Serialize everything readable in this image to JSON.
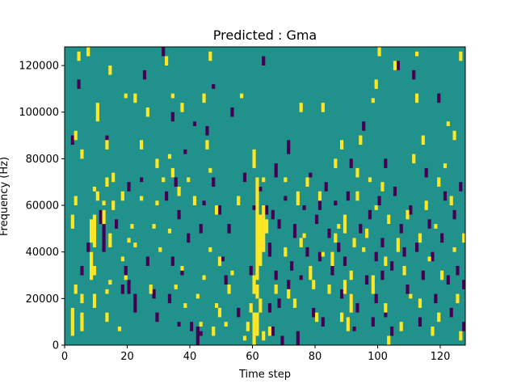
{
  "chart_data": {
    "type": "heatmap",
    "title": "Predicted : Gma",
    "xlabel": "Time step",
    "ylabel": "Frequency (Hz)",
    "xlim": [
      0,
      128
    ],
    "ylim": [
      0,
      128000
    ],
    "xticks": [
      0,
      20,
      40,
      60,
      80,
      100,
      120
    ],
    "yticks": [
      0,
      20000,
      40000,
      60000,
      80000,
      100000,
      120000
    ],
    "grid": false,
    "colors": {
      "background": "#21918c",
      "low": "#440154",
      "high": "#fde725"
    },
    "high_cells": [
      [
        2,
        4000,
        16000
      ],
      [
        2,
        50000,
        56000
      ],
      [
        3,
        60000,
        64000
      ],
      [
        3,
        22000,
        26000
      ],
      [
        3,
        88000,
        92000
      ],
      [
        4,
        122000,
        126000
      ],
      [
        5,
        6000,
        14000
      ],
      [
        5,
        18000,
        22000
      ],
      [
        5,
        80000,
        84000
      ],
      [
        7,
        124000,
        128000
      ],
      [
        8,
        28000,
        40000
      ],
      [
        8,
        44000,
        54000
      ],
      [
        9,
        42000,
        56000
      ],
      [
        9,
        30000,
        34000
      ],
      [
        9,
        66000,
        68000
      ],
      [
        9,
        16000,
        22000
      ],
      [
        10,
        96000,
        104000
      ],
      [
        10,
        62000,
        66000
      ],
      [
        12,
        52000,
        58000
      ],
      [
        12,
        60000,
        62000
      ],
      [
        13,
        84000,
        88000
      ],
      [
        13,
        22000,
        24000
      ],
      [
        13,
        10000,
        14000
      ],
      [
        13,
        68000,
        72000
      ],
      [
        14,
        42000,
        48000
      ],
      [
        14,
        26000,
        28000
      ],
      [
        14,
        116000,
        120000
      ],
      [
        15,
        58000,
        62000
      ],
      [
        15,
        70000,
        74000
      ],
      [
        17,
        6000,
        8000
      ],
      [
        18,
        36000,
        38000
      ],
      [
        18,
        62000,
        66000
      ],
      [
        19,
        28000,
        30000
      ],
      [
        19,
        106000,
        108000
      ],
      [
        20,
        44000,
        46000
      ],
      [
        21,
        50000,
        52000
      ],
      [
        22,
        104000,
        108000
      ],
      [
        22,
        42000,
        44000
      ],
      [
        24,
        84000,
        88000
      ],
      [
        24,
        62000,
        64000
      ],
      [
        26,
        98000,
        102000
      ],
      [
        27,
        22000,
        26000
      ],
      [
        28,
        50000,
        52000
      ],
      [
        29,
        60000,
        62000
      ],
      [
        29,
        76000,
        80000
      ],
      [
        30,
        40000,
        42000
      ],
      [
        31,
        70000,
        72000
      ],
      [
        32,
        120000,
        124000
      ],
      [
        33,
        80000,
        82000
      ],
      [
        33,
        48000,
        50000
      ],
      [
        34,
        72000,
        76000
      ],
      [
        34,
        106000,
        108000
      ],
      [
        35,
        24000,
        26000
      ],
      [
        36,
        64000,
        68000
      ],
      [
        37,
        100000,
        104000
      ],
      [
        37,
        32000,
        34000
      ],
      [
        38,
        16000,
        18000
      ],
      [
        39,
        70000,
        72000
      ],
      [
        41,
        60000,
        64000
      ],
      [
        42,
        20000,
        22000
      ],
      [
        43,
        8000,
        10000
      ],
      [
        44,
        104000,
        108000
      ],
      [
        44,
        28000,
        30000
      ],
      [
        45,
        84000,
        88000
      ],
      [
        46,
        74000,
        76000
      ],
      [
        46,
        40000,
        42000
      ],
      [
        46,
        122000,
        126000
      ],
      [
        47,
        4000,
        8000
      ],
      [
        48,
        56000,
        60000
      ],
      [
        48,
        16000,
        18000
      ],
      [
        49,
        12000,
        16000
      ],
      [
        49,
        34000,
        38000
      ],
      [
        51,
        8000,
        10000
      ],
      [
        52,
        22000,
        26000
      ],
      [
        53,
        30000,
        32000
      ],
      [
        55,
        60000,
        64000
      ],
      [
        56,
        106000,
        108000
      ],
      [
        57,
        2000,
        4000
      ],
      [
        58,
        6000,
        10000
      ],
      [
        59,
        14000,
        18000
      ],
      [
        60,
        76000,
        84000
      ],
      [
        60,
        22000,
        30000
      ],
      [
        60,
        0,
        14000
      ],
      [
        61,
        28000,
        72000
      ],
      [
        61,
        20000,
        26000
      ],
      [
        61,
        4000,
        14000
      ],
      [
        62,
        34000,
        56000
      ],
      [
        62,
        14000,
        20000
      ],
      [
        63,
        40000,
        60000
      ],
      [
        63,
        2000,
        6000
      ],
      [
        63,
        70000,
        72000
      ],
      [
        64,
        48000,
        54000
      ],
      [
        65,
        4000,
        8000
      ],
      [
        67,
        22000,
        26000
      ],
      [
        70,
        38000,
        42000
      ],
      [
        70,
        70000,
        72000
      ],
      [
        71,
        20000,
        24000
      ],
      [
        73,
        16000,
        20000
      ],
      [
        74,
        60000,
        66000
      ],
      [
        75,
        100000,
        104000
      ],
      [
        75,
        42000,
        46000
      ],
      [
        76,
        46000,
        48000
      ],
      [
        77,
        68000,
        72000
      ],
      [
        78,
        28000,
        34000
      ],
      [
        79,
        24000,
        28000
      ],
      [
        80,
        10000,
        14000
      ],
      [
        81,
        62000,
        66000
      ],
      [
        82,
        38000,
        40000
      ],
      [
        82,
        100000,
        104000
      ],
      [
        84,
        22000,
        26000
      ],
      [
        85,
        34000,
        40000
      ],
      [
        86,
        76000,
        80000
      ],
      [
        86,
        44000,
        48000
      ],
      [
        87,
        50000,
        52000
      ],
      [
        88,
        84000,
        88000
      ],
      [
        88,
        10000,
        14000
      ],
      [
        89,
        22000,
        28000
      ],
      [
        89,
        48000,
        56000
      ],
      [
        90,
        6000,
        12000
      ],
      [
        91,
        14000,
        22000
      ],
      [
        91,
        28000,
        32000
      ],
      [
        92,
        42000,
        46000
      ],
      [
        93,
        62000,
        66000
      ],
      [
        93,
        72000,
        76000
      ],
      [
        94,
        86000,
        90000
      ],
      [
        95,
        40000,
        42000
      ],
      [
        96,
        46000,
        50000
      ],
      [
        97,
        70000,
        72000
      ],
      [
        98,
        22000,
        30000
      ],
      [
        98,
        104000,
        106000
      ],
      [
        99,
        110000,
        114000
      ],
      [
        99,
        58000,
        60000
      ],
      [
        100,
        124000,
        128000
      ],
      [
        101,
        66000,
        70000
      ],
      [
        102,
        34000,
        38000
      ],
      [
        102,
        14000,
        18000
      ],
      [
        103,
        0,
        4000
      ],
      [
        103,
        52000,
        56000
      ],
      [
        105,
        118000,
        122000
      ],
      [
        106,
        40000,
        46000
      ],
      [
        107,
        6000,
        10000
      ],
      [
        108,
        30000,
        34000
      ],
      [
        109,
        54000,
        58000
      ],
      [
        110,
        20000,
        22000
      ],
      [
        111,
        78000,
        82000
      ],
      [
        112,
        104000,
        108000
      ],
      [
        112,
        124000,
        126000
      ],
      [
        113,
        44000,
        48000
      ],
      [
        113,
        16000,
        20000
      ],
      [
        114,
        86000,
        90000
      ],
      [
        115,
        58000,
        62000
      ],
      [
        116,
        36000,
        38000
      ],
      [
        117,
        4000,
        8000
      ],
      [
        118,
        50000,
        52000
      ],
      [
        119,
        68000,
        72000
      ],
      [
        119,
        10000,
        14000
      ],
      [
        120,
        28000,
        32000
      ],
      [
        121,
        76000,
        78000
      ],
      [
        122,
        94000,
        96000
      ],
      [
        123,
        60000,
        64000
      ],
      [
        124,
        40000,
        42000
      ],
      [
        124,
        88000,
        92000
      ],
      [
        125,
        18000,
        22000
      ],
      [
        126,
        2000,
        6000
      ],
      [
        126,
        122000,
        126000
      ],
      [
        127,
        44000,
        48000
      ]
    ],
    "low_cells": [
      [
        2,
        86000,
        90000
      ],
      [
        4,
        110000,
        114000
      ],
      [
        5,
        30000,
        34000
      ],
      [
        7,
        40000,
        44000
      ],
      [
        11,
        52000,
        58000
      ],
      [
        12,
        40000,
        52000
      ],
      [
        13,
        88000,
        90000
      ],
      [
        16,
        50000,
        54000
      ],
      [
        18,
        22000,
        26000
      ],
      [
        19,
        30000,
        34000
      ],
      [
        20,
        22000,
        28000
      ],
      [
        20,
        66000,
        70000
      ],
      [
        22,
        14000,
        22000
      ],
      [
        24,
        70000,
        72000
      ],
      [
        25,
        114000,
        118000
      ],
      [
        26,
        34000,
        38000
      ],
      [
        28,
        20000,
        24000
      ],
      [
        29,
        10000,
        14000
      ],
      [
        31,
        124000,
        128000
      ],
      [
        32,
        62000,
        66000
      ],
      [
        33,
        18000,
        22000
      ],
      [
        34,
        96000,
        100000
      ],
      [
        34,
        34000,
        38000
      ],
      [
        35,
        68000,
        72000
      ],
      [
        36,
        54000,
        58000
      ],
      [
        36,
        8000,
        10000
      ],
      [
        37,
        30000,
        34000
      ],
      [
        38,
        82000,
        84000
      ],
      [
        39,
        44000,
        48000
      ],
      [
        40,
        6000,
        10000
      ],
      [
        41,
        94000,
        96000
      ],
      [
        42,
        0,
        8000
      ],
      [
        43,
        4000,
        6000
      ],
      [
        43,
        48000,
        52000
      ],
      [
        44,
        60000,
        62000
      ],
      [
        45,
        90000,
        94000
      ],
      [
        47,
        68000,
        72000
      ],
      [
        47,
        110000,
        112000
      ],
      [
        49,
        56000,
        60000
      ],
      [
        50,
        36000,
        38000
      ],
      [
        51,
        26000,
        30000
      ],
      [
        52,
        48000,
        52000
      ],
      [
        53,
        98000,
        102000
      ],
      [
        55,
        12000,
        16000
      ],
      [
        57,
        70000,
        74000
      ],
      [
        59,
        30000,
        34000
      ],
      [
        60,
        58000,
        60000
      ],
      [
        61,
        10000,
        12000
      ],
      [
        62,
        66000,
        68000
      ],
      [
        63,
        120000,
        124000
      ],
      [
        64,
        56000,
        60000
      ],
      [
        65,
        38000,
        44000
      ],
      [
        65,
        14000,
        18000
      ],
      [
        66,
        4000,
        8000
      ],
      [
        66,
        54000,
        58000
      ],
      [
        67,
        72000,
        78000
      ],
      [
        67,
        28000,
        32000
      ],
      [
        68,
        16000,
        20000
      ],
      [
        68,
        50000,
        54000
      ],
      [
        69,
        0,
        4000
      ],
      [
        70,
        62000,
        64000
      ],
      [
        71,
        82000,
        88000
      ],
      [
        71,
        24000,
        28000
      ],
      [
        72,
        32000,
        36000
      ],
      [
        73,
        46000,
        52000
      ],
      [
        74,
        0,
        6000
      ],
      [
        75,
        28000,
        30000
      ],
      [
        76,
        58000,
        60000
      ],
      [
        77,
        38000,
        42000
      ],
      [
        78,
        72000,
        74000
      ],
      [
        79,
        12000,
        16000
      ],
      [
        80,
        52000,
        56000
      ],
      [
        81,
        36000,
        40000
      ],
      [
        81,
        58000,
        62000
      ],
      [
        82,
        8000,
        12000
      ],
      [
        83,
        66000,
        70000
      ],
      [
        84,
        46000,
        50000
      ],
      [
        85,
        30000,
        34000
      ],
      [
        86,
        60000,
        62000
      ],
      [
        87,
        40000,
        44000
      ],
      [
        88,
        20000,
        24000
      ],
      [
        89,
        34000,
        38000
      ],
      [
        90,
        62000,
        66000
      ],
      [
        91,
        76000,
        80000
      ],
      [
        91,
        18000,
        22000
      ],
      [
        92,
        6000,
        8000
      ],
      [
        93,
        14000,
        18000
      ],
      [
        94,
        48000,
        52000
      ],
      [
        95,
        92000,
        96000
      ],
      [
        96,
        26000,
        30000
      ],
      [
        97,
        54000,
        58000
      ],
      [
        98,
        8000,
        12000
      ],
      [
        99,
        36000,
        40000
      ],
      [
        99,
        18000,
        22000
      ],
      [
        100,
        60000,
        64000
      ],
      [
        101,
        42000,
        46000
      ],
      [
        101,
        28000,
        32000
      ],
      [
        102,
        76000,
        80000
      ],
      [
        102,
        12000,
        16000
      ],
      [
        103,
        52000,
        56000
      ],
      [
        104,
        32000,
        36000
      ],
      [
        104,
        4000,
        8000
      ],
      [
        105,
        64000,
        68000
      ],
      [
        106,
        118000,
        122000
      ],
      [
        107,
        48000,
        52000
      ],
      [
        108,
        38000,
        42000
      ],
      [
        109,
        22000,
        26000
      ],
      [
        110,
        56000,
        60000
      ],
      [
        111,
        114000,
        118000
      ],
      [
        112,
        40000,
        44000
      ],
      [
        113,
        8000,
        12000
      ],
      [
        114,
        28000,
        32000
      ],
      [
        115,
        72000,
        76000
      ],
      [
        116,
        50000,
        54000
      ],
      [
        117,
        36000,
        40000
      ],
      [
        118,
        18000,
        22000
      ],
      [
        119,
        104000,
        108000
      ],
      [
        120,
        44000,
        48000
      ],
      [
        121,
        62000,
        66000
      ],
      [
        122,
        26000,
        30000
      ],
      [
        123,
        12000,
        16000
      ],
      [
        124,
        54000,
        58000
      ],
      [
        125,
        30000,
        34000
      ],
      [
        126,
        66000,
        70000
      ],
      [
        127,
        24000,
        28000
      ],
      [
        127,
        6000,
        10000
      ]
    ]
  }
}
